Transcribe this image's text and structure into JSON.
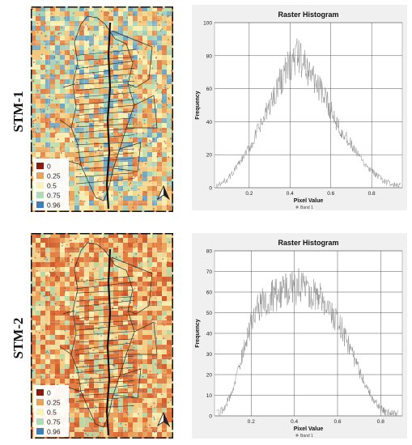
{
  "rows": [
    {
      "label": "STM-1",
      "legend": [
        {
          "value": "0",
          "color": "#8b1a10"
        },
        {
          "value": "0.25",
          "color": "#e8a35a"
        },
        {
          "value": "0.5",
          "color": "#f6f3b6"
        },
        {
          "value": "0.75",
          "color": "#aedcb9"
        },
        {
          "value": "0.96",
          "color": "#3c7fc0"
        }
      ],
      "north_arrow": "north-arrow"
    },
    {
      "label": "STM-2",
      "legend": [
        {
          "value": "0",
          "color": "#8b1a10"
        },
        {
          "value": "0.25",
          "color": "#e8a35a"
        },
        {
          "value": "0.5",
          "color": "#f6f3b6"
        },
        {
          "value": "0.75",
          "color": "#aedcb9"
        },
        {
          "value": "0.96",
          "color": "#3c7fc0"
        }
      ],
      "north_arrow": "north-arrow"
    }
  ],
  "chart_data": [
    {
      "type": "line",
      "title": "Raster Histogram",
      "xlabel": "Pixel Value",
      "ylabel": "Frequency",
      "xlim": [
        0.03,
        0.95
      ],
      "ylim": [
        0,
        100
      ],
      "xticks": [
        "0.2",
        "0.4",
        "0.6",
        "0.8"
      ],
      "yticks": [
        "0",
        "20",
        "40",
        "60",
        "80",
        "100"
      ],
      "legend": [
        "Band 1"
      ],
      "legend_position": "bottom-center",
      "grid": true,
      "series": [
        {
          "name": "Band 1",
          "color": "#8a8a8a",
          "x": [
            0.04,
            0.06,
            0.08,
            0.1,
            0.12,
            0.14,
            0.16,
            0.18,
            0.2,
            0.22,
            0.24,
            0.26,
            0.28,
            0.3,
            0.32,
            0.34,
            0.36,
            0.38,
            0.4,
            0.42,
            0.44,
            0.46,
            0.48,
            0.5,
            0.52,
            0.54,
            0.56,
            0.58,
            0.6,
            0.62,
            0.64,
            0.66,
            0.68,
            0.7,
            0.72,
            0.74,
            0.76,
            0.78,
            0.8,
            0.82,
            0.84,
            0.86,
            0.88,
            0.9,
            0.92,
            0.94
          ],
          "y": [
            1,
            2,
            4,
            6,
            9,
            13,
            16,
            20,
            24,
            28,
            34,
            38,
            44,
            50,
            55,
            62,
            66,
            71,
            74,
            78,
            80,
            76,
            73,
            70,
            66,
            61,
            56,
            52,
            47,
            42,
            38,
            33,
            29,
            26,
            22,
            19,
            15,
            12,
            10,
            8,
            6,
            4,
            3,
            2,
            1,
            1
          ]
        }
      ]
    },
    {
      "type": "line",
      "title": "Raster Histogram",
      "xlabel": "Pixel Value",
      "ylabel": "Frequency",
      "xlim": [
        0.03,
        0.9
      ],
      "ylim": [
        0,
        80
      ],
      "xticks": [
        "0.2",
        "0.4",
        "0.6",
        "0.8"
      ],
      "yticks": [
        "0",
        "10",
        "20",
        "30",
        "40",
        "50",
        "60",
        "70",
        "80"
      ],
      "legend": [
        "Band 1"
      ],
      "legend_position": "bottom-center",
      "grid": true,
      "series": [
        {
          "name": "Band 1",
          "color": "#8a8a8a",
          "x": [
            0.04,
            0.06,
            0.08,
            0.1,
            0.12,
            0.14,
            0.16,
            0.18,
            0.2,
            0.22,
            0.24,
            0.26,
            0.28,
            0.3,
            0.32,
            0.34,
            0.36,
            0.38,
            0.4,
            0.42,
            0.44,
            0.46,
            0.48,
            0.5,
            0.52,
            0.54,
            0.56,
            0.58,
            0.6,
            0.62,
            0.64,
            0.66,
            0.68,
            0.7,
            0.72,
            0.74,
            0.76,
            0.78,
            0.8,
            0.82,
            0.84,
            0.86,
            0.88
          ],
          "y": [
            1,
            2,
            5,
            9,
            14,
            22,
            30,
            38,
            45,
            50,
            54,
            56,
            57,
            58,
            59,
            60,
            61,
            62,
            62,
            63,
            62,
            61,
            60,
            58,
            57,
            55,
            52,
            49,
            46,
            42,
            37,
            32,
            27,
            22,
            17,
            13,
            9,
            6,
            4,
            2,
            2,
            1,
            1
          ]
        }
      ]
    }
  ]
}
